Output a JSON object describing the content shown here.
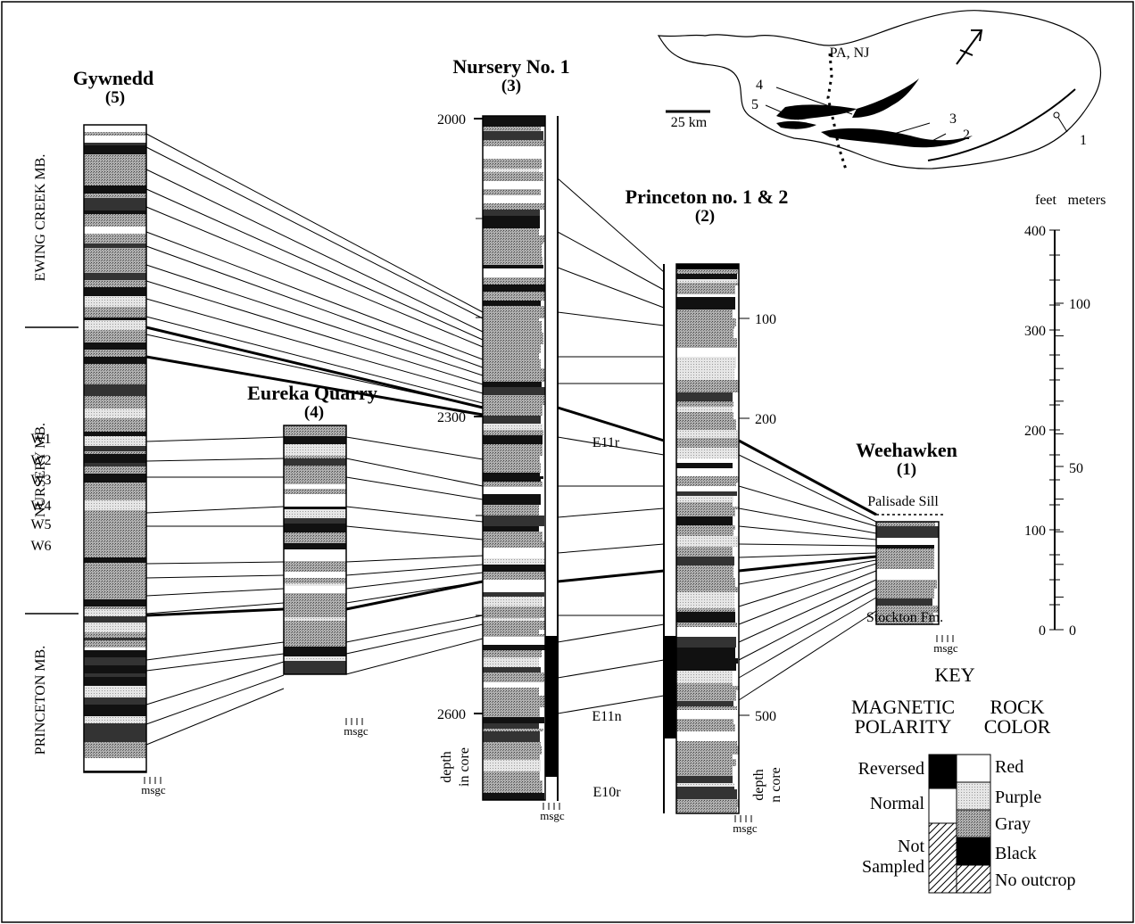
{
  "sections": {
    "gywnedd": {
      "name": "Gywnedd",
      "num": "(5)"
    },
    "nursery": {
      "name": "Nursery No. 1",
      "num": "(3)"
    },
    "princeton": {
      "name": "Princeton no. 1 & 2",
      "num": "(2)"
    },
    "eureka": {
      "name": "Eureka Quarry",
      "num": "(4)"
    },
    "weehawken": {
      "name": "Weehawken",
      "num": "(1)"
    }
  },
  "members": [
    "EWING CREEK MB.",
    "NURSERY MB.",
    "PRINCETON MB."
  ],
  "w_units": [
    "W1",
    "W2",
    "W3",
    "W4",
    "W5",
    "W6"
  ],
  "nursery_depths": [
    "2000",
    "2300",
    "2600"
  ],
  "princeton_depths": [
    "100",
    "200",
    "500"
  ],
  "polarity_zones": [
    "E11r",
    "E11n",
    "E10r"
  ],
  "depth_label": {
    "line1": "depth",
    "line2": "in core"
  },
  "depth_label2": {
    "line1": "depth",
    "line2": "n core"
  },
  "grain_label": "msgc",
  "weehawken_top": "Palisade Sill",
  "weehawken_bottom": "Stockton Fm.",
  "scale": {
    "feet_label": "feet",
    "meters_label": "meters",
    "feet_ticks": [
      "400",
      "300",
      "200",
      "100",
      "0"
    ],
    "meter_ticks": [
      "100",
      "50",
      "0"
    ]
  },
  "map": {
    "state_label": "PA, NJ",
    "scale_label": "25 km",
    "locations": [
      "4",
      "5",
      "3",
      "2",
      "1"
    ]
  },
  "key": {
    "title": "KEY",
    "mag_title": [
      "MAGNETIC",
      "POLARITY"
    ],
    "color_title": [
      "ROCK",
      "COLOR"
    ],
    "polarity": [
      "Reversed",
      "Normal",
      "Not",
      "Sampled"
    ],
    "colors": [
      "Red",
      "Purple",
      "Gray",
      "Black",
      "No outcrop"
    ]
  },
  "colors": {
    "red": "#ffffff",
    "purple": "#d6d6d6",
    "gray": "#8c8c8c",
    "black": "#0d0d0d"
  }
}
